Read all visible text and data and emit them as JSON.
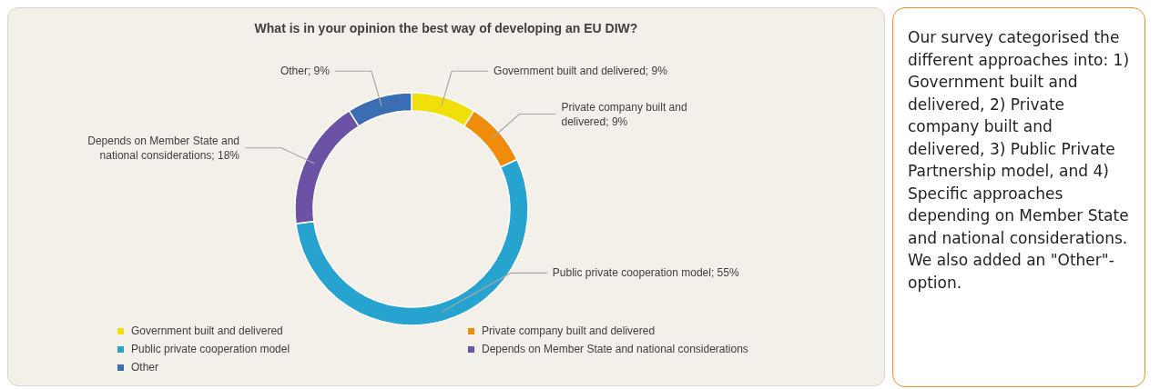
{
  "chart_data": [
    {
      "type": "donut",
      "title": "What is in your opinion the best way of developing an EU DIW?",
      "categories": [
        "Government built and delivered",
        "Private company built and delivered",
        "Public private cooperation model",
        "Depends on Member State and national considerations",
        "Other"
      ],
      "values": [
        9,
        9,
        55,
        18,
        9
      ],
      "colors": [
        "#f0df0a",
        "#ef8c0c",
        "#27a3cf",
        "#6b52a5",
        "#3b6db3"
      ],
      "value_labels": [
        "Government built and delivered; 9%",
        "Private company built and delivered; 9%",
        "Public private cooperation model; 55%",
        "Depends on Member State and national considerations; 18%",
        "Other; 9%"
      ],
      "legend": "bottom"
    },
    {
      "type": "other",
      "annotations": [
        "Our survey categorised the different approaches into: 1) Government built and delivered, 2) Private company built and delivered, 3) Public Private Partnership model, and 4) Specific approaches depending on Member State and national considerations. We also added an \"Other\"-option."
      ]
    }
  ]
}
